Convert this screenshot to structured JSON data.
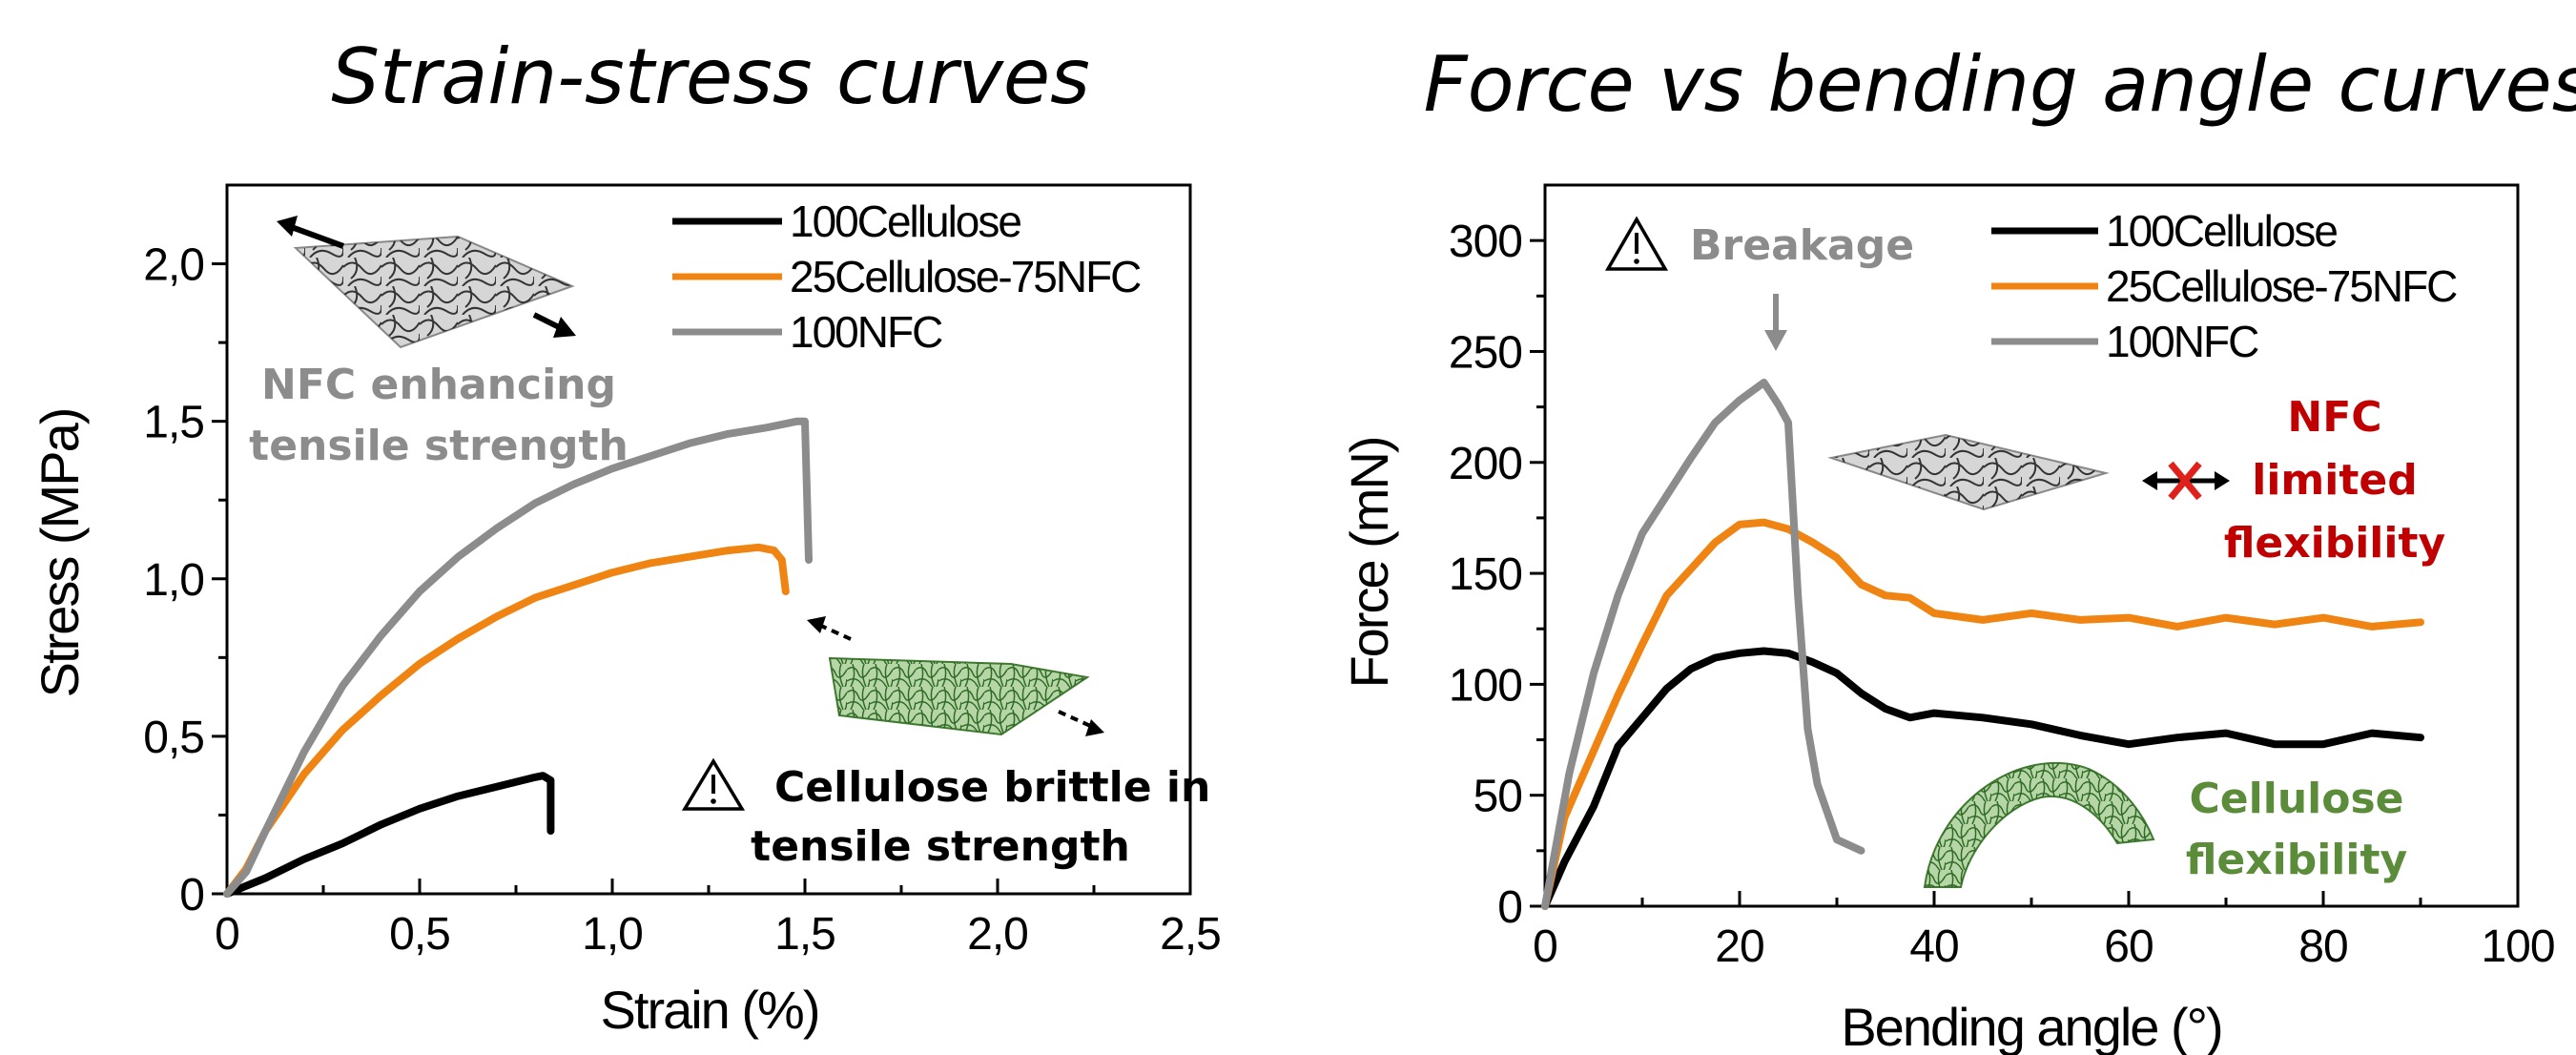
{
  "colors": {
    "series_1": "#000000",
    "series_2": "#f08413",
    "series_3": "#8c8c8c",
    "nfc_note": "#8c8c8c",
    "nfc_limited": "#c00000",
    "cellulose_flex": "#5b8c3a",
    "brittle": "#000000"
  },
  "chart_data": [
    {
      "type": "line",
      "title": "Strain-stress curves",
      "xlabel": "Strain (%)",
      "ylabel": "Stress (MPa)",
      "xlim": [
        0,
        2.5
      ],
      "ylim": [
        0,
        2.25
      ],
      "x_ticks": [
        0,
        0.5,
        1.0,
        1.5,
        2.0,
        2.5
      ],
      "x_tick_labels": [
        "0",
        "0,5",
        "1,0",
        "1,5",
        "2,0",
        "2,5"
      ],
      "y_ticks": [
        0,
        0.5,
        1.0,
        1.5,
        2.0
      ],
      "y_tick_labels": [
        "0",
        "0,5",
        "1,0",
        "1,5",
        "2,0"
      ],
      "legend_position": "top-right",
      "series": [
        {
          "name": "100Cellulose",
          "color_key": "series_1",
          "points": [
            [
              0,
              0
            ],
            [
              0.1,
              0.05
            ],
            [
              0.2,
              0.11
            ],
            [
              0.3,
              0.16
            ],
            [
              0.4,
              0.22
            ],
            [
              0.5,
              0.27
            ],
            [
              0.6,
              0.31
            ],
            [
              0.7,
              0.34
            ],
            [
              0.8,
              0.37
            ],
            [
              0.82,
              0.375
            ],
            [
              0.84,
              0.36
            ],
            [
              0.84,
              0.2
            ]
          ]
        },
        {
          "name": "25Cellulose-75NFC",
          "color_key": "series_2",
          "points": [
            [
              0,
              0
            ],
            [
              0.05,
              0.08
            ],
            [
              0.1,
              0.2
            ],
            [
              0.2,
              0.38
            ],
            [
              0.3,
              0.52
            ],
            [
              0.4,
              0.63
            ],
            [
              0.5,
              0.73
            ],
            [
              0.6,
              0.81
            ],
            [
              0.7,
              0.88
            ],
            [
              0.8,
              0.94
            ],
            [
              0.9,
              0.98
            ],
            [
              1.0,
              1.02
            ],
            [
              1.1,
              1.05
            ],
            [
              1.2,
              1.07
            ],
            [
              1.3,
              1.09
            ],
            [
              1.38,
              1.1
            ],
            [
              1.42,
              1.09
            ],
            [
              1.44,
              1.06
            ],
            [
              1.45,
              0.96
            ]
          ]
        },
        {
          "name": "100NFC",
          "color_key": "series_3",
          "points": [
            [
              0,
              0
            ],
            [
              0.05,
              0.07
            ],
            [
              0.1,
              0.2
            ],
            [
              0.2,
              0.45
            ],
            [
              0.3,
              0.66
            ],
            [
              0.4,
              0.82
            ],
            [
              0.5,
              0.96
            ],
            [
              0.6,
              1.07
            ],
            [
              0.7,
              1.16
            ],
            [
              0.8,
              1.24
            ],
            [
              0.9,
              1.3
            ],
            [
              1.0,
              1.35
            ],
            [
              1.1,
              1.39
            ],
            [
              1.2,
              1.43
            ],
            [
              1.3,
              1.46
            ],
            [
              1.4,
              1.48
            ],
            [
              1.48,
              1.5
            ],
            [
              1.5,
              1.5
            ],
            [
              1.51,
              1.06
            ]
          ]
        }
      ],
      "annotations": {
        "nfc_enhancing": [
          "NFC enhancing",
          "tensile strength"
        ],
        "brittle": [
          "Cellulose brittle in",
          "tensile strength"
        ]
      }
    },
    {
      "type": "line",
      "title": "Force vs bending angle curves",
      "xlabel": "Bending angle  (°)",
      "ylabel": "Force (mN)",
      "xlim": [
        0,
        100
      ],
      "ylim": [
        0,
        325
      ],
      "x_ticks": [
        0,
        20,
        40,
        60,
        80,
        100
      ],
      "x_tick_labels": [
        "0",
        "20",
        "40",
        "60",
        "80",
        "100"
      ],
      "y_ticks": [
        0,
        50,
        100,
        150,
        200,
        250,
        300
      ],
      "y_tick_labels": [
        "0",
        "50",
        "100",
        "150",
        "200",
        "250",
        "300"
      ],
      "legend_position": "top-right",
      "series": [
        {
          "name": "100Cellulose",
          "color_key": "series_1",
          "points": [
            [
              0,
              0
            ],
            [
              2,
              20
            ],
            [
              5,
              45
            ],
            [
              7.5,
              72
            ],
            [
              10,
              85
            ],
            [
              12.5,
              98
            ],
            [
              15,
              107
            ],
            [
              17.5,
              112
            ],
            [
              20,
              114
            ],
            [
              22.5,
              115
            ],
            [
              25,
              114
            ],
            [
              27.5,
              110
            ],
            [
              30,
              105
            ],
            [
              32.5,
              96
            ],
            [
              35,
              89
            ],
            [
              37.5,
              85
            ],
            [
              40,
              87
            ],
            [
              45,
              85
            ],
            [
              50,
              82
            ],
            [
              55,
              77
            ],
            [
              60,
              73
            ],
            [
              65,
              76
            ],
            [
              70,
              78
            ],
            [
              75,
              73
            ],
            [
              80,
              73
            ],
            [
              85,
              78
            ],
            [
              90,
              76
            ]
          ]
        },
        {
          "name": "25Cellulose-75NFC",
          "color_key": "series_2",
          "points": [
            [
              0,
              0
            ],
            [
              2,
              40
            ],
            [
              5,
              70
            ],
            [
              7.5,
              95
            ],
            [
              10,
              118
            ],
            [
              12.5,
              140
            ],
            [
              15,
              152
            ],
            [
              17.5,
              164
            ],
            [
              20,
              172
            ],
            [
              22.5,
              173
            ],
            [
              25,
              170
            ],
            [
              27.5,
              164
            ],
            [
              30,
              157
            ],
            [
              32.5,
              145
            ],
            [
              35,
              140
            ],
            [
              37.5,
              139
            ],
            [
              40,
              132
            ],
            [
              45,
              129
            ],
            [
              50,
              132
            ],
            [
              55,
              129
            ],
            [
              60,
              130
            ],
            [
              65,
              126
            ],
            [
              70,
              130
            ],
            [
              75,
              127
            ],
            [
              80,
              130
            ],
            [
              85,
              126
            ],
            [
              90,
              128
            ]
          ]
        },
        {
          "name": "100NFC",
          "color_key": "series_3",
          "points": [
            [
              0,
              0
            ],
            [
              2.5,
              60
            ],
            [
              5,
              105
            ],
            [
              7.5,
              140
            ],
            [
              10,
              168
            ],
            [
              12.5,
              185
            ],
            [
              15,
              202
            ],
            [
              17.5,
              218
            ],
            [
              20,
              228
            ],
            [
              22.5,
              236
            ],
            [
              24,
              226
            ],
            [
              25,
              218
            ],
            [
              26,
              140
            ],
            [
              27,
              80
            ],
            [
              28,
              55
            ],
            [
              30,
              30
            ],
            [
              32.5,
              25
            ]
          ]
        }
      ],
      "annotations": {
        "breakage": "Breakage",
        "nfc_limited": [
          "NFC",
          "limited",
          "flexibility"
        ],
        "cellulose_flex": [
          "Cellulose",
          "flexibility"
        ]
      }
    }
  ]
}
